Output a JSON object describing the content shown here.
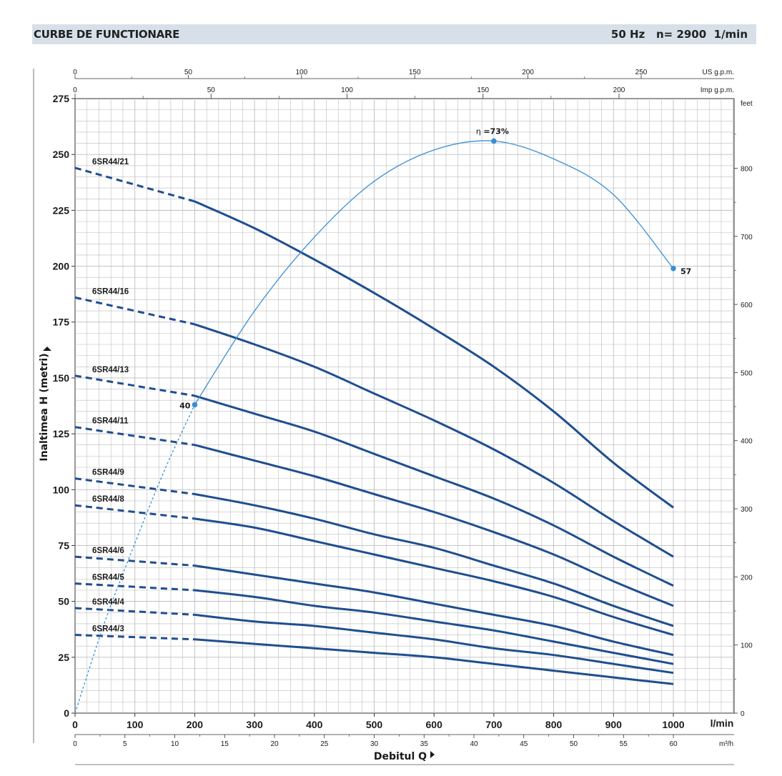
{
  "header": {
    "title": "CURBE DE FUNCTIONARE",
    "freq": "50 Hz",
    "speed": "n= 2900  1/min"
  },
  "chart_data": {
    "type": "line",
    "xlabel": "Debitul Q",
    "ylabel": "Inaltimea H (metri)",
    "x_unit": "l/min",
    "xlim": [
      0,
      1100
    ],
    "ylim": [
      0,
      275
    ],
    "x_ticks": [
      0,
      100,
      200,
      300,
      400,
      500,
      600,
      700,
      800,
      900,
      1000
    ],
    "y_ticks": [
      0,
      25,
      50,
      75,
      100,
      125,
      150,
      175,
      200,
      225,
      250,
      275
    ],
    "secondary_axes": {
      "us_gpm": {
        "unit": "US g.p.m.",
        "ticks": [
          0,
          50,
          100,
          150,
          200,
          250
        ]
      },
      "imp_gpm": {
        "unit": "Imp g.p.m.",
        "ticks": [
          0,
          50,
          100,
          150,
          200
        ]
      },
      "m3h": {
        "unit": "m³/h",
        "ticks": [
          0,
          5,
          10,
          15,
          20,
          25,
          30,
          35,
          40,
          45,
          50,
          55,
          60
        ]
      },
      "feet": {
        "unit": "feet",
        "ticks": [
          0,
          100,
          200,
          300,
          400,
          500,
          600,
          700,
          800
        ]
      }
    },
    "curve_x": [
      0,
      200,
      300,
      400,
      500,
      600,
      700,
      800,
      900,
      1000
    ],
    "dashed_until_x": 200,
    "series": [
      {
        "name": "6SR44/21",
        "values": [
          244,
          229,
          217,
          203,
          188,
          172,
          155,
          135,
          112,
          92
        ]
      },
      {
        "name": "6SR44/16",
        "values": [
          186,
          174,
          165,
          155,
          143,
          131,
          118,
          103,
          86,
          70
        ]
      },
      {
        "name": "6SR44/13",
        "values": [
          151,
          142,
          134,
          126,
          116,
          106,
          96,
          84,
          70,
          57
        ]
      },
      {
        "name": "6SR44/11",
        "values": [
          128,
          120,
          113,
          106,
          98,
          90,
          81,
          71,
          59,
          48
        ]
      },
      {
        "name": "6SR44/9",
        "values": [
          105,
          98,
          93,
          87,
          80,
          74,
          66,
          58,
          48,
          39
        ]
      },
      {
        "name": "6SR44/8",
        "values": [
          93,
          87,
          83,
          77,
          71,
          65,
          59,
          52,
          43,
          35
        ]
      },
      {
        "name": "6SR44/6",
        "values": [
          70,
          66,
          62,
          58,
          54,
          49,
          44,
          39,
          32,
          26
        ]
      },
      {
        "name": "6SR44/5",
        "values": [
          58,
          55,
          52,
          48,
          45,
          41,
          37,
          32,
          27,
          22
        ]
      },
      {
        "name": "6SR44/4",
        "values": [
          47,
          44,
          41,
          39,
          36,
          33,
          29,
          26,
          22,
          18
        ]
      },
      {
        "name": "6SR44/3",
        "values": [
          35,
          33,
          31,
          29,
          27,
          25,
          22,
          19,
          16,
          13
        ]
      }
    ],
    "efficiency_curve": {
      "label_prefix": "η",
      "max_label": "=73%",
      "point_labels": [
        "40",
        "57"
      ],
      "dashed_x": [
        0,
        50,
        100,
        150,
        200
      ],
      "dashed_y": [
        0,
        41,
        76,
        109,
        138
      ],
      "solid_x": [
        200,
        300,
        400,
        500,
        600,
        700,
        800,
        900,
        1000
      ],
      "solid_y": [
        138,
        180,
        213,
        238,
        252,
        256,
        248,
        232,
        199
      ],
      "marked_points": [
        {
          "x": 200,
          "y": 138
        },
        {
          "x": 700,
          "y": 256
        },
        {
          "x": 1000,
          "y": 199
        }
      ]
    },
    "colors": {
      "curve": "#1f4e8f",
      "efficiency": "#3a8fd4",
      "grid": "#bdbdbd",
      "header_bg": "#d7e0e8"
    }
  }
}
